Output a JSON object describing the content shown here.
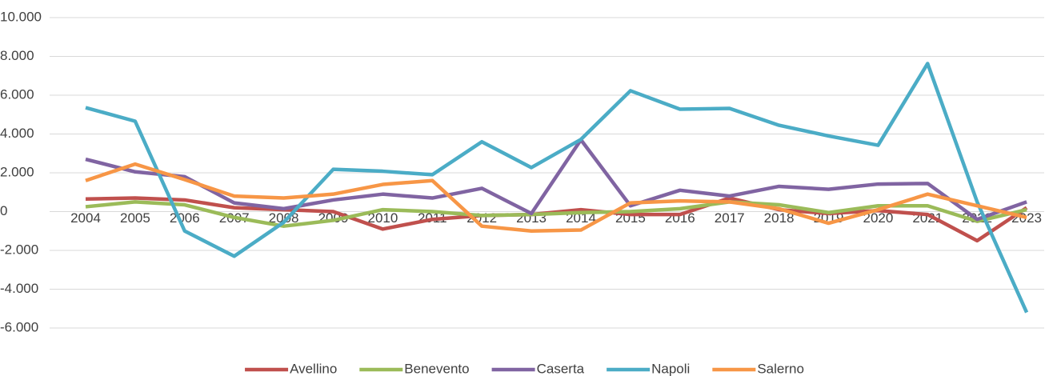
{
  "chart_data": {
    "type": "line",
    "categories": [
      "2004",
      "2005",
      "2006",
      "2007",
      "2008",
      "2009",
      "2010",
      "2011",
      "2012",
      "2013",
      "2014",
      "2015",
      "2016",
      "2017",
      "2018",
      "2019",
      "2020",
      "2021",
      "2022",
      "2023"
    ],
    "ylim": [
      -6000,
      10000
    ],
    "yticks": [
      {
        "value": -6000,
        "label": "-6.000"
      },
      {
        "value": -4000,
        "label": "-4.000"
      },
      {
        "value": -2000,
        "label": "-2.000"
      },
      0,
      {
        "value": 2000,
        "label": "2.000"
      },
      {
        "value": 4000,
        "label": "4.000"
      },
      {
        "value": 6000,
        "label": "6.000"
      },
      {
        "value": 8000,
        "label": "8.000"
      },
      {
        "value": 10000,
        "label": "10.000"
      }
    ],
    "grid": true,
    "legend": "bottom",
    "series": [
      {
        "name": "Avellino",
        "color": "#c0504d",
        "values": [
          650,
          700,
          600,
          200,
          100,
          0,
          -900,
          -400,
          -200,
          -150,
          100,
          -150,
          -150,
          700,
          100,
          -100,
          50,
          -150,
          -1500,
          200
        ]
      },
      {
        "name": "Benevento",
        "color": "#9bbb59",
        "values": [
          250,
          500,
          350,
          -300,
          -750,
          -450,
          100,
          0,
          -200,
          -150,
          -50,
          0,
          150,
          500,
          350,
          -50,
          300,
          300,
          -500,
          100
        ]
      },
      {
        "name": "Caserta",
        "color": "#8064a2",
        "values": [
          2700,
          2050,
          1800,
          450,
          150,
          600,
          900,
          700,
          1200,
          -100,
          3700,
          300,
          1100,
          800,
          1300,
          1150,
          1420,
          1450,
          -400,
          500
        ]
      },
      {
        "name": "Napoli",
        "color": "#4bacc6",
        "values": [
          5360,
          4660,
          -1000,
          -2300,
          -550,
          2180,
          2080,
          1900,
          3600,
          2270,
          3720,
          6230,
          5280,
          5320,
          4450,
          3900,
          3420,
          7630,
          500,
          -5200
        ]
      },
      {
        "name": "Salerno",
        "color": "#f79646",
        "values": [
          1600,
          2450,
          1650,
          800,
          700,
          900,
          1400,
          1600,
          -750,
          -1000,
          -950,
          450,
          550,
          500,
          150,
          -600,
          100,
          900,
          300,
          -300
        ]
      }
    ]
  }
}
